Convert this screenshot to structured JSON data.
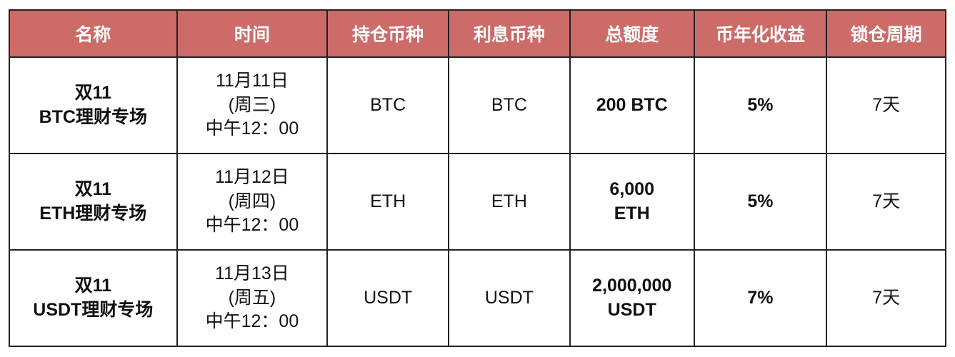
{
  "header_color": "#cd6b68",
  "headers": [
    "名称",
    "时间",
    "持仓币种",
    "利息币种",
    "总额度",
    "币年化收益",
    "锁仓周期"
  ],
  "rows": [
    {
      "name": [
        "双11",
        "BTC理财专场"
      ],
      "time": [
        "11月11日",
        "(周三)",
        "中午12：00"
      ],
      "hold": "BTC",
      "interest": "BTC",
      "total": [
        "200 BTC"
      ],
      "apy": "5%",
      "lock": "7天"
    },
    {
      "name": [
        "双11",
        "ETH理财专场"
      ],
      "time": [
        "11月12日",
        "(周四)",
        "中午12：00"
      ],
      "hold": "ETH",
      "interest": "ETH",
      "total": [
        "6,000",
        "ETH"
      ],
      "apy": "5%",
      "lock": "7天"
    },
    {
      "name": [
        "双11",
        "USDT理财专场"
      ],
      "time": [
        "11月13日",
        "(周五)",
        "中午12：00"
      ],
      "hold": "USDT",
      "interest": "USDT",
      "total": [
        "2,000,000",
        "USDT"
      ],
      "apy": "7%",
      "lock": "7天"
    }
  ]
}
